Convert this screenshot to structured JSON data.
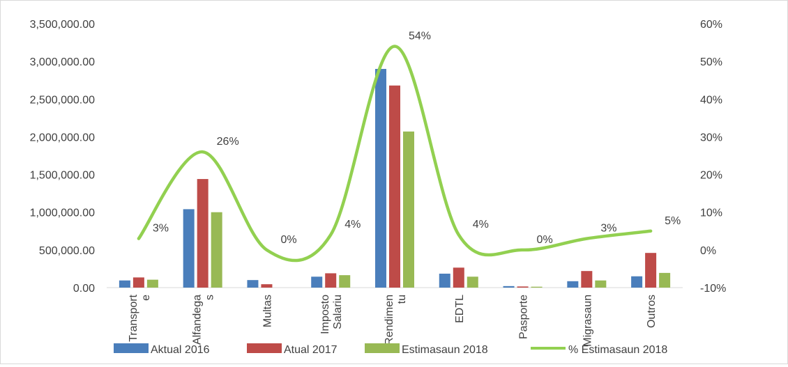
{
  "chart_data": {
    "type": "bar",
    "categories": [
      "Transport e",
      "Alfandega s",
      "Multas",
      "Imposto Salariu",
      "Rendimen tu",
      "EDTL",
      "Pasporte",
      "Migrasaun",
      "Outros"
    ],
    "category_lines": [
      [
        "Transport",
        "e"
      ],
      [
        "Alfandega",
        "s"
      ],
      [
        "Multas"
      ],
      [
        "Imposto",
        "Salariu"
      ],
      [
        "Rendimen",
        "tu"
      ],
      [
        "EDTL"
      ],
      [
        "Pasporte"
      ],
      [
        "Migrasaun"
      ],
      [
        "Outros"
      ]
    ],
    "series": [
      {
        "name": "Aktual 2016",
        "color": "#4a7ebb",
        "values": [
          95000,
          1040000,
          100000,
          145000,
          2900000,
          185000,
          20000,
          85000,
          150000
        ]
      },
      {
        "name": "Atual 2017",
        "color": "#be4b48",
        "values": [
          135000,
          1440000,
          45000,
          190000,
          2680000,
          265000,
          15000,
          220000,
          460000
        ]
      },
      {
        "name": "Estimasaun 2018",
        "color": "#98b954",
        "values": [
          105000,
          1000000,
          0,
          165000,
          2070000,
          145000,
          12000,
          95000,
          195000
        ]
      }
    ],
    "line_series": {
      "name": "% Estimasaun 2018",
      "color": "#92d050",
      "values": [
        0.03,
        0.26,
        0.0,
        0.04,
        0.54,
        0.04,
        0.0,
        0.03,
        0.05
      ],
      "labels": [
        "3%",
        "26%",
        "0%",
        "4%",
        "54%",
        "4%",
        "0%",
        "3%",
        "5%"
      ]
    },
    "y_left": {
      "min": 0,
      "max": 3500000,
      "step": 500000,
      "ticks": [
        "0.00",
        "500,000.00",
        "1,000,000.00",
        "1,500,000.00",
        "2,000,000.00",
        "2,500,000.00",
        "3,000,000.00",
        "3,500,000.00"
      ]
    },
    "y_right": {
      "min": -0.1,
      "max": 0.6,
      "ticks": [
        "-10%",
        "0%",
        "10%",
        "20%",
        "30%",
        "40%",
        "50%",
        "60%"
      ]
    },
    "legend": {
      "placement": "bottom",
      "items": [
        "Aktual 2016",
        "Atual 2017",
        "Estimasaun 2018",
        "% Estimasaun 2018"
      ]
    },
    "grid": false
  }
}
